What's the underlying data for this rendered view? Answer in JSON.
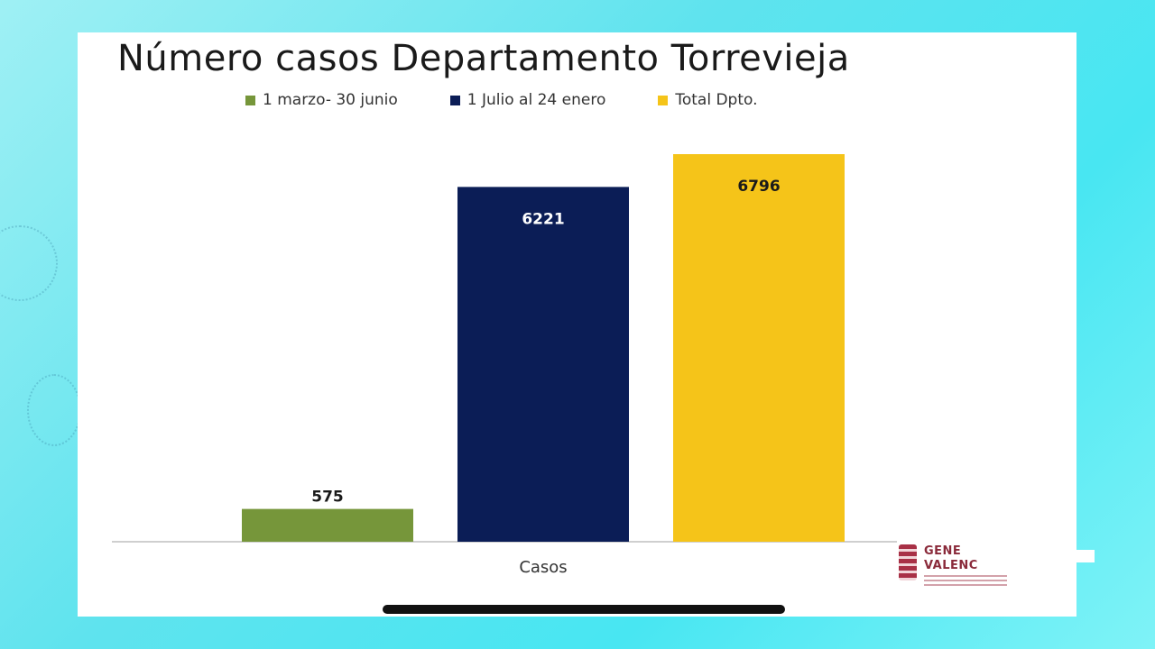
{
  "chart_data": {
    "type": "bar",
    "title": "Número casos Departamento Torrevieja",
    "categories": [
      "Casos"
    ],
    "series": [
      {
        "name": "1 marzo- 30 junio",
        "values": [
          575
        ],
        "color": "#76963a",
        "label_color": "#1a1a1a"
      },
      {
        "name": "1 Julio al 24 enero",
        "values": [
          6221
        ],
        "color": "#0b1d56",
        "label_color": "#ffffff"
      },
      {
        "name": "Total Dpto.",
        "values": [
          6796
        ],
        "color": "#f5c419",
        "label_color": "#1a1a1a"
      }
    ],
    "ylim": [
      0,
      6796
    ],
    "grid": false,
    "legend_position": "top"
  },
  "logo": {
    "text_line1": "GENE",
    "text_line2": "VALENC"
  }
}
